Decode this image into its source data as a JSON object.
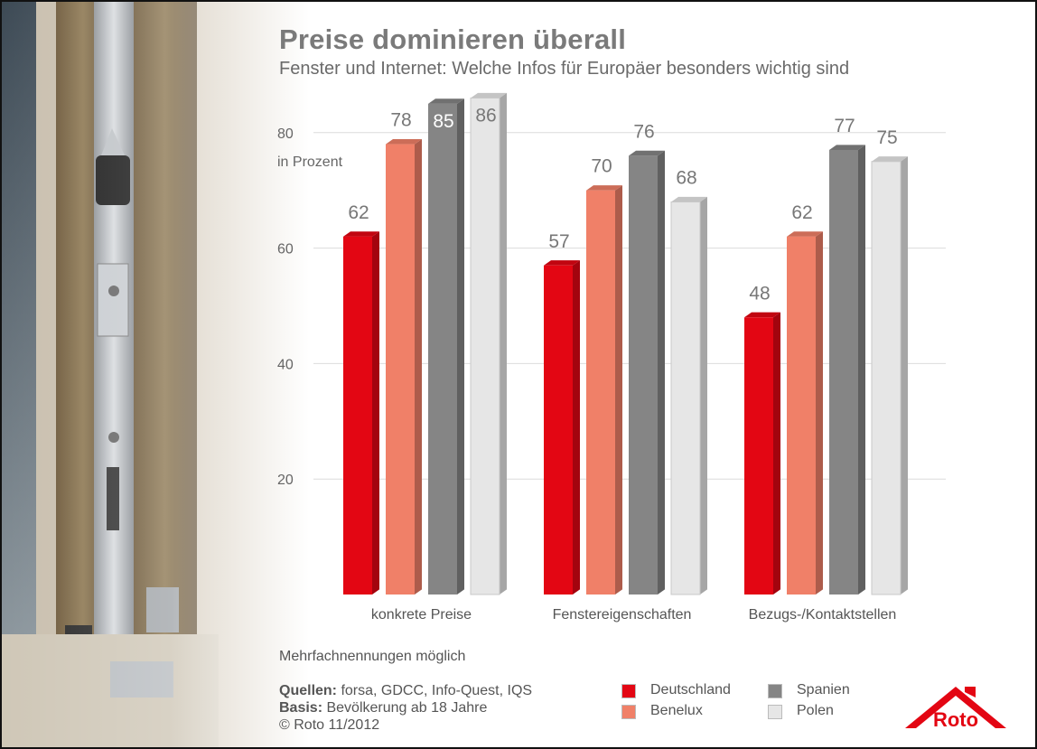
{
  "header": {
    "title": "Preise dominieren überall",
    "subtitle": "Fenster und Internet: Welche Infos für Europäer besonders wichtig sind"
  },
  "chart_data": {
    "type": "bar",
    "title": "Preise dominieren überall",
    "subtitle": "Fenster und Internet: Welche Infos für Europäer besonders wichtig sind",
    "ylabel": "in Prozent",
    "ylim": [
      0,
      86
    ],
    "yticks": [
      20,
      40,
      60,
      80
    ],
    "grid": true,
    "legend": "bottom",
    "categories": [
      "konkrete Preise",
      "Fenstereigenschaften",
      "Bezugs-/Kontaktstellen"
    ],
    "series": [
      {
        "name": "Deutschland",
        "color": "#e30613",
        "values": [
          62,
          57,
          48
        ]
      },
      {
        "name": "Benelux",
        "color": "#f08068",
        "values": [
          78,
          70,
          62
        ]
      },
      {
        "name": "Spanien",
        "color": "#858585",
        "values": [
          85,
          76,
          77
        ]
      },
      {
        "name": "Polen",
        "color": "#e6e6e6",
        "values": [
          86,
          68,
          75
        ]
      }
    ]
  },
  "footer": {
    "note": "Mehrfachnennungen möglich",
    "sources_label": "Quellen:",
    "sources_text": " forsa, GDCC, Info-Quest, IQS",
    "basis_label": "Basis:",
    "basis_text": " Bevölkerung ab 18 Jahre",
    "copyright": "© Roto 11/2012"
  },
  "legend": [
    {
      "name": "Deutschland",
      "color": "#e30613"
    },
    {
      "name": "Benelux",
      "color": "#f08068"
    },
    {
      "name": "Spanien",
      "color": "#858585"
    },
    {
      "name": "Polen",
      "color": "#e6e6e6"
    }
  ],
  "logo": {
    "text": "Roto",
    "color": "#e30613",
    "icon": "roof-icon"
  }
}
